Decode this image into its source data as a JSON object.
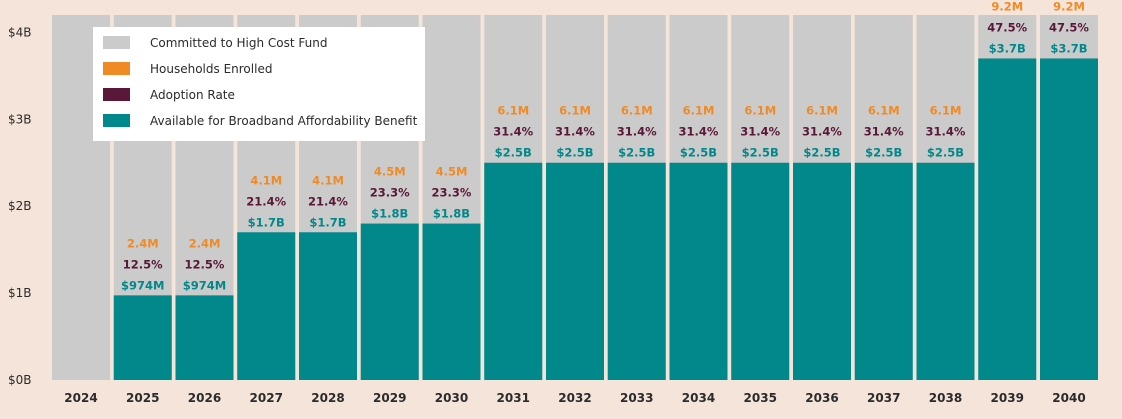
{
  "chart_data": {
    "type": "bar",
    "title": "",
    "xlabel": "",
    "ylabel": "",
    "ylim": [
      0,
      4.2
    ],
    "yticks": [
      {
        "value": 0,
        "label": "$0B"
      },
      {
        "value": 1,
        "label": "$1B"
      },
      {
        "value": 2,
        "label": "$2B"
      },
      {
        "value": 3,
        "label": "$3B"
      },
      {
        "value": 4,
        "label": "$4B"
      }
    ],
    "categories": [
      "2024",
      "2025",
      "2026",
      "2027",
      "2028",
      "2029",
      "2030",
      "2031",
      "2032",
      "2033",
      "2034",
      "2035",
      "2036",
      "2037",
      "2038",
      "2039",
      "2040"
    ],
    "series": [
      {
        "name": "Committed to High Cost Fund",
        "color": "#cbcbcb",
        "values": [
          4.2,
          4.2,
          4.2,
          4.2,
          4.2,
          4.2,
          4.2,
          4.2,
          4.2,
          4.2,
          4.2,
          4.2,
          4.2,
          4.2,
          4.2,
          4.2,
          4.2
        ]
      },
      {
        "name": "Available for Broadband Affordability Benefit",
        "color": "#00888a",
        "values": [
          0,
          0.974,
          0.974,
          1.7,
          1.7,
          1.8,
          1.8,
          2.5,
          2.5,
          2.5,
          2.5,
          2.5,
          2.5,
          2.5,
          2.5,
          3.7,
          3.7
        ],
        "labels": [
          "",
          "$974M",
          "$974M",
          "$1.7B",
          "$1.7B",
          "$1.8B",
          "$1.8B",
          "$2.5B",
          "$2.5B",
          "$2.5B",
          "$2.5B",
          "$2.5B",
          "$2.5B",
          "$2.5B",
          "$2.5B",
          "$3.7B",
          "$3.7B"
        ]
      }
    ],
    "households_enrolled": {
      "name": "Households Enrolled",
      "color": "#f08a24",
      "labels": [
        "",
        "2.4M",
        "2.4M",
        "4.1M",
        "4.1M",
        "4.5M",
        "4.5M",
        "6.1M",
        "6.1M",
        "6.1M",
        "6.1M",
        "6.1M",
        "6.1M",
        "6.1M",
        "6.1M",
        "9.2M",
        "9.2M"
      ]
    },
    "adoption_rate": {
      "name": "Adoption Rate",
      "color": "#5a1838",
      "labels": [
        "",
        "12.5%",
        "12.5%",
        "21.4%",
        "21.4%",
        "23.3%",
        "23.3%",
        "31.4%",
        "31.4%",
        "31.4%",
        "31.4%",
        "31.4%",
        "31.4%",
        "31.4%",
        "31.4%",
        "47.5%",
        "47.5%"
      ]
    },
    "legend": [
      {
        "label": "Committed to High Cost Fund",
        "color": "#cbcbcb"
      },
      {
        "label": "Households Enrolled",
        "color": "#f08a24"
      },
      {
        "label": "Adoption Rate",
        "color": "#5a1838"
      },
      {
        "label": "Available for Broadband Affordability Benefit",
        "color": "#00888a"
      }
    ],
    "legend_position": "top-left"
  }
}
